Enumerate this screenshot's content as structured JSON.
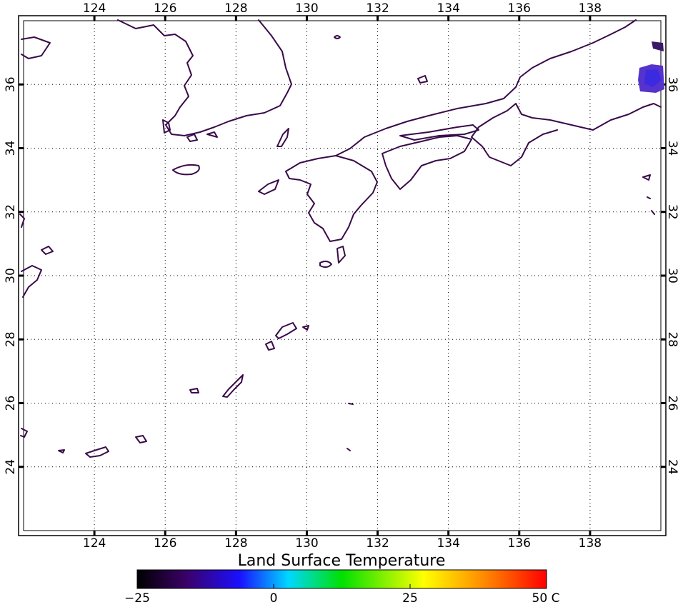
{
  "map": {
    "lon_ticks": [
      "124",
      "126",
      "128",
      "130",
      "132",
      "134",
      "136",
      "138"
    ],
    "lat_ticks": [
      "24",
      "26",
      "28",
      "30",
      "32",
      "34",
      "36"
    ],
    "lon_range": [
      122,
      140
    ],
    "lat_range": [
      22,
      38
    ]
  },
  "legend": {
    "title": "Land Surface Temperature",
    "min_label": "−25",
    "labels": [
      "0",
      "25"
    ],
    "max_label": "50 C",
    "range": [
      -25,
      50
    ],
    "colors": [
      "#000000",
      "#3b0068",
      "#0000ff",
      "#00ffff",
      "#00ff00",
      "#ffff00",
      "#ff8000",
      "#ff0000"
    ]
  }
}
